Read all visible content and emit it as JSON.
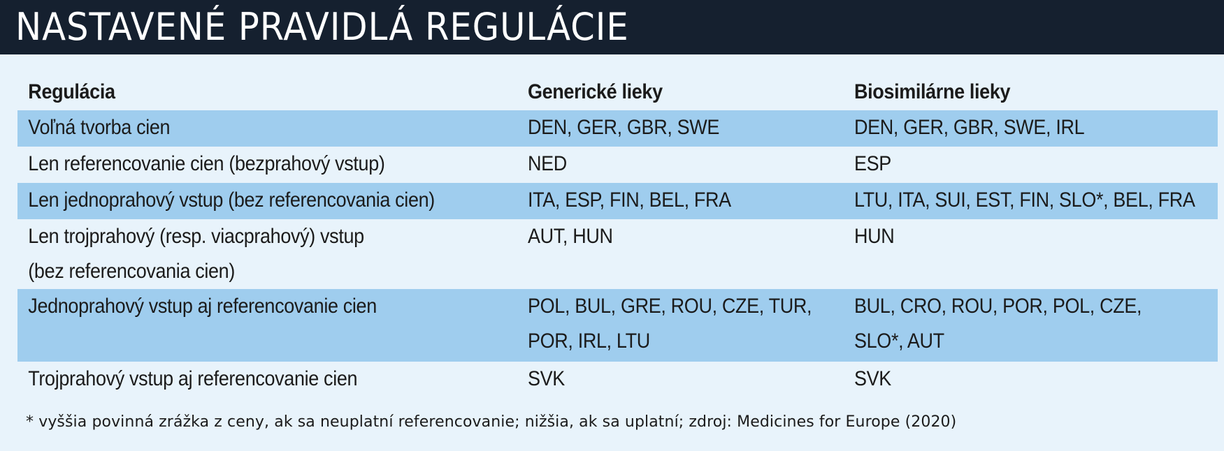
{
  "title": "NASTAVENÉ PRAVIDLÁ REGULÁCIE",
  "columns": [
    "Regulácia",
    "Generické lieky",
    "Biosimilárne lieky"
  ],
  "rows": [
    {
      "regulation": [
        "Voľná tvorba cien"
      ],
      "generic": [
        "DEN, GER, GBR, SWE"
      ],
      "biosimilar": [
        "DEN, GER, GBR, SWE, IRL"
      ],
      "shaded": true
    },
    {
      "regulation": [
        "Len referencovanie cien (bezprahový vstup)"
      ],
      "generic": [
        "NED"
      ],
      "biosimilar": [
        "ESP"
      ],
      "shaded": false
    },
    {
      "regulation": [
        "Len jednoprahový vstup (bez referencovania cien)"
      ],
      "generic": [
        "ITA, ESP, FIN, BEL, FRA"
      ],
      "biosimilar": [
        "LTU, ITA, SUI, EST, FIN, SLO*, BEL, FRA"
      ],
      "shaded": true
    },
    {
      "regulation": [
        "Len trojprahový (resp. viacprahový) vstup",
        "(bez referencovania cien)"
      ],
      "generic": [
        "AUT, HUN"
      ],
      "biosimilar": [
        "HUN"
      ],
      "shaded": false
    },
    {
      "regulation": [
        "Jednoprahový vstup aj referencovanie cien"
      ],
      "generic": [
        "POL, BUL, GRE, ROU, CZE, TUR,",
        "POR, IRL, LTU"
      ],
      "biosimilar": [
        "BUL, CRO, ROU, POR, POL, CZE,",
        "SLO*, AUT"
      ],
      "shaded": true
    },
    {
      "regulation": [
        "Trojprahový vstup aj referencovanie cien"
      ],
      "generic": [
        "SVK"
      ],
      "biosimilar": [
        "SVK"
      ],
      "shaded": false
    }
  ],
  "footnote": "* vyššia povinná zrážka z ceny, ak sa neuplatní referencovanie; nižšia, ak sa uplatní; zdroj: Medicines for Europe (2020)",
  "colors": {
    "header_bg": "#15202f",
    "page_bg": "#e8f3fb",
    "row_shade": "#9fcdee"
  }
}
